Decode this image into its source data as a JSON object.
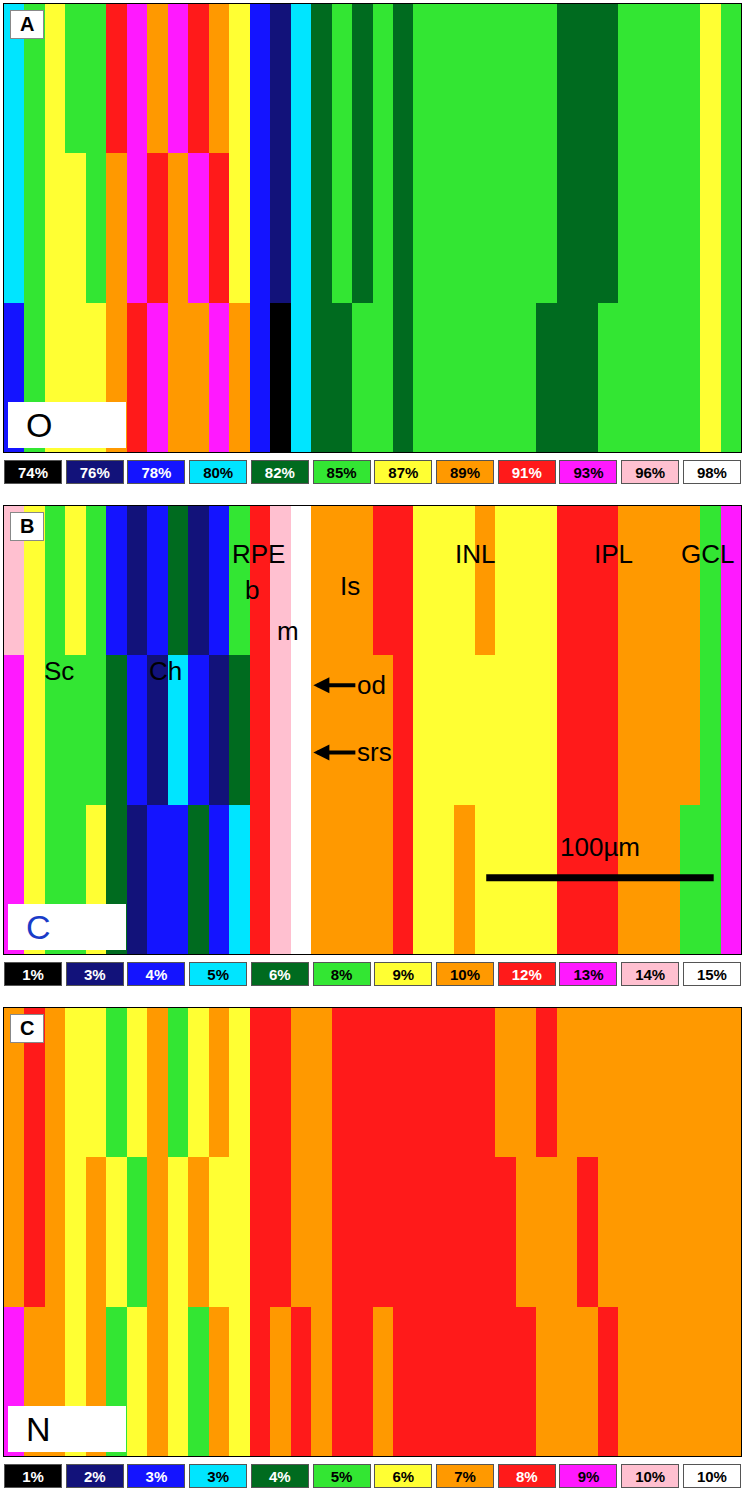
{
  "chart_data": [
    {
      "type": "heatmap",
      "panel": "A",
      "element": {
        "text": "O",
        "color": "#000000"
      },
      "tick_labels": false,
      "x": [
        4.5,
        13.5,
        22.5,
        31.5,
        40.5,
        49.5,
        58.5,
        67.5,
        76.5,
        85.5,
        94.5,
        103.5,
        112.5,
        121.5,
        130.5,
        139.5,
        148.5,
        157.5,
        166.5,
        175.5,
        184.5,
        193.5,
        202.5,
        211.5,
        220.5,
        229.5,
        238.5,
        247.5,
        256.5,
        265.5,
        274.5,
        283.5,
        292.5,
        301.5,
        310.5,
        319.5
      ],
      "z": [
        [
          80,
          85,
          87,
          85,
          85,
          91,
          93,
          89,
          93,
          91,
          89,
          87,
          78,
          76,
          80,
          82,
          85,
          82,
          85,
          82,
          85,
          85,
          85,
          85,
          85,
          85,
          85,
          82,
          82,
          82,
          85,
          85,
          85,
          85,
          87,
          85
        ],
        [
          80,
          85,
          87,
          87,
          85,
          89,
          93,
          91,
          89,
          93,
          91,
          87,
          78,
          76,
          80,
          82,
          85,
          82,
          85,
          82,
          85,
          85,
          85,
          85,
          85,
          85,
          85,
          82,
          82,
          82,
          85,
          85,
          85,
          85,
          87,
          85
        ],
        [
          78,
          85,
          87,
          87,
          87,
          89,
          91,
          93,
          89,
          89,
          93,
          89,
          78,
          74,
          80,
          82,
          82,
          85,
          85,
          82,
          85,
          85,
          85,
          85,
          85,
          85,
          82,
          82,
          82,
          85,
          85,
          85,
          85,
          85,
          87,
          85
        ]
      ],
      "colorbar": {
        "range": [
          74,
          98
        ],
        "ticks": [
          {
            "value": 74,
            "label": "74%"
          },
          {
            "value": 76,
            "label": "76%"
          },
          {
            "value": 78,
            "label": "78%"
          },
          {
            "value": 80,
            "label": "80%"
          },
          {
            "value": 82,
            "label": "82%"
          },
          {
            "value": 85,
            "label": "85%"
          },
          {
            "value": 87,
            "label": "87%"
          },
          {
            "value": 89,
            "label": "89%"
          },
          {
            "value": 91,
            "label": "91%"
          },
          {
            "value": 93,
            "label": "93%"
          },
          {
            "value": 96,
            "label": "96%"
          },
          {
            "value": 98,
            "label": "98%"
          }
        ],
        "colors": [
          "#000000",
          "#12127a",
          "#1414ff",
          "#00e5ff",
          "#006b1f",
          "#33e633",
          "#ffff33",
          "#ff9900",
          "#ff1a1a",
          "#ff19ff",
          "#ffc0d0",
          "#ffffff"
        ]
      }
    },
    {
      "type": "heatmap",
      "panel": "B",
      "element": {
        "text": "C",
        "color": "#1a3cc8"
      },
      "tick_labels": false,
      "x": [
        4.5,
        13.5,
        22.5,
        31.5,
        40.5,
        49.5,
        58.5,
        67.5,
        76.5,
        85.5,
        94.5,
        103.5,
        112.5,
        121.5,
        130.5,
        139.5,
        148.5,
        157.5,
        166.5,
        175.5,
        184.5,
        193.5,
        202.5,
        211.5,
        220.5,
        229.5,
        238.5,
        247.5,
        256.5,
        265.5,
        274.5,
        283.5,
        292.5,
        301.5,
        310.5,
        319.5
      ],
      "z": [
        [
          14,
          9,
          8,
          9,
          8,
          4,
          3,
          4,
          6,
          3,
          4,
          8,
          12,
          14,
          15,
          10,
          10,
          10,
          12,
          12,
          9,
          9,
          9,
          10,
          9,
          9,
          9,
          12,
          12,
          12,
          10,
          10,
          10,
          10,
          8,
          13
        ],
        [
          13,
          9,
          8,
          8,
          8,
          6,
          4,
          3,
          5,
          4,
          3,
          6,
          12,
          14,
          15,
          10,
          10,
          10,
          10,
          12,
          9,
          9,
          9,
          9,
          9,
          9,
          9,
          12,
          12,
          12,
          10,
          10,
          10,
          10,
          8,
          13
        ],
        [
          13,
          9,
          8,
          8,
          9,
          6,
          3,
          4,
          4,
          6,
          4,
          5,
          12,
          14,
          15,
          10,
          10,
          10,
          10,
          12,
          9,
          9,
          10,
          9,
          9,
          9,
          9,
          12,
          12,
          12,
          10,
          10,
          10,
          8,
          8,
          13
        ]
      ],
      "colorbar": {
        "range": [
          1,
          15
        ],
        "ticks": [
          {
            "value": 1,
            "label": "1%"
          },
          {
            "value": 3,
            "label": "3%"
          },
          {
            "value": 4,
            "label": "4%"
          },
          {
            "value": 5,
            "label": "5%"
          },
          {
            "value": 6,
            "label": "6%"
          },
          {
            "value": 8,
            "label": "8%"
          },
          {
            "value": 9,
            "label": "9%"
          },
          {
            "value": 10,
            "label": "10%"
          },
          {
            "value": 12,
            "label": "12%"
          },
          {
            "value": 13,
            "label": "13%"
          },
          {
            "value": 14,
            "label": "14%"
          },
          {
            "value": 15,
            "label": "15%"
          }
        ],
        "colors": [
          "#000000",
          "#12127a",
          "#1414ff",
          "#00e5ff",
          "#006b1f",
          "#33e633",
          "#ffff33",
          "#ff9900",
          "#ff1a1a",
          "#ff19ff",
          "#ffc0d0",
          "#ffffff"
        ]
      },
      "annotations": [
        "Sc",
        "Ch",
        "RPE",
        "b",
        "m",
        "Is",
        "od",
        "srs",
        "INL",
        "IPL",
        "GCL"
      ],
      "scale_bar": {
        "length": 100,
        "label": "100µm"
      }
    },
    {
      "type": "heatmap",
      "panel": "C",
      "element": {
        "text": "N",
        "color": "#000000"
      },
      "tick_labels": false,
      "x": [
        4.5,
        13.5,
        22.5,
        31.5,
        40.5,
        49.5,
        58.5,
        67.5,
        76.5,
        85.5,
        94.5,
        103.5,
        112.5,
        121.5,
        130.5,
        139.5,
        148.5,
        157.5,
        166.5,
        175.5,
        184.5,
        193.5,
        202.5,
        211.5,
        220.5,
        229.5,
        238.5,
        247.5,
        256.5,
        265.5,
        274.5,
        283.5,
        292.5,
        301.5,
        310.5,
        319.5
      ],
      "z": [
        [
          7,
          8,
          7,
          6,
          6,
          5,
          6,
          7,
          5,
          6,
          7,
          6,
          8,
          8,
          7,
          7,
          8,
          8,
          8,
          8,
          8,
          8,
          8,
          8,
          7,
          7,
          8,
          7,
          7,
          7,
          7,
          7,
          7,
          7,
          7,
          7
        ],
        [
          7,
          8,
          7,
          6,
          7,
          6,
          5,
          7,
          6,
          7,
          6,
          6,
          8,
          8,
          7,
          7,
          8,
          8,
          8,
          8,
          8,
          8,
          8,
          8,
          8,
          7,
          7,
          7,
          8,
          7,
          7,
          7,
          7,
          7,
          7,
          7
        ],
        [
          9,
          7,
          7,
          6,
          7,
          5,
          6,
          7,
          6,
          5,
          7,
          6,
          8,
          7,
          8,
          7,
          8,
          8,
          7,
          8,
          8,
          8,
          8,
          8,
          8,
          8,
          7,
          7,
          7,
          8,
          7,
          7,
          7,
          7,
          7,
          7
        ]
      ],
      "colorbar": {
        "range": [
          1,
          10.4
        ],
        "ticks": [
          {
            "value": 1,
            "label": "1%"
          },
          {
            "value": 2,
            "label": "2%"
          },
          {
            "value": 3,
            "label": "3%"
          },
          {
            "value": 3.4,
            "label": "3%"
          },
          {
            "value": 4,
            "label": "4%"
          },
          {
            "value": 5,
            "label": "5%"
          },
          {
            "value": 6,
            "label": "6%"
          },
          {
            "value": 7,
            "label": "7%"
          },
          {
            "value": 8,
            "label": "8%"
          },
          {
            "value": 9,
            "label": "9%"
          },
          {
            "value": 10,
            "label": "10%"
          },
          {
            "value": 10.4,
            "label": "10%"
          }
        ],
        "colors": [
          "#000000",
          "#12127a",
          "#1414ff",
          "#00e5ff",
          "#006b1f",
          "#33e633",
          "#ffff33",
          "#ff9900",
          "#ff1a1a",
          "#ff19ff",
          "#ffc0d0",
          "#ffffff"
        ]
      }
    }
  ]
}
